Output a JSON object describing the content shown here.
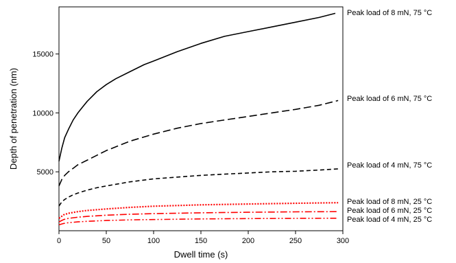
{
  "chart_data": {
    "type": "line",
    "title": "",
    "xlabel": "Dwell time (s)",
    "ylabel": "Depth of penetration (nm)",
    "xlim": [
      0,
      300
    ],
    "ylim": [
      0,
      19000
    ],
    "xticks": [
      0,
      50,
      100,
      150,
      200,
      250,
      300
    ],
    "yticks": [
      5000,
      10000,
      15000
    ],
    "xtick_labels": [
      "0",
      "50",
      "100",
      "150",
      "200",
      "250",
      "300"
    ],
    "ytick_labels": [
      "5000",
      "10000",
      "15000"
    ],
    "grid": false,
    "legend": "labels placed at right end of each curve",
    "series": [
      {
        "name": "Peak load of 8 mN, 75 °C",
        "color": "#000000",
        "dash": "solid",
        "x": [
          0,
          3,
          6,
          10,
          15,
          20,
          25,
          30,
          40,
          50,
          60,
          75,
          90,
          100,
          125,
          150,
          175,
          200,
          225,
          250,
          275,
          292
        ],
        "y": [
          5900,
          7000,
          7900,
          8600,
          9400,
          10000,
          10500,
          11000,
          11800,
          12400,
          12900,
          13500,
          14100,
          14400,
          15200,
          15900,
          16500,
          16900,
          17300,
          17700,
          18100,
          18450
        ]
      },
      {
        "name": "Peak load of 6 mN, 75 °C",
        "color": "#000000",
        "dash": "longdash",
        "x": [
          0,
          3,
          6,
          10,
          15,
          20,
          30,
          40,
          50,
          75,
          100,
          125,
          150,
          175,
          200,
          225,
          250,
          275,
          295
        ],
        "y": [
          3800,
          4350,
          4700,
          5000,
          5300,
          5600,
          6000,
          6400,
          6800,
          7600,
          8200,
          8700,
          9100,
          9400,
          9700,
          10000,
          10300,
          10650,
          11050
        ]
      },
      {
        "name": "Peak load of 4 mN, 75 °C",
        "color": "#000000",
        "dash": "shortdash",
        "x": [
          0,
          3,
          6,
          10,
          15,
          20,
          30,
          40,
          50,
          75,
          100,
          125,
          150,
          175,
          200,
          225,
          250,
          275,
          295
        ],
        "y": [
          2100,
          2450,
          2650,
          2850,
          3050,
          3200,
          3450,
          3650,
          3800,
          4150,
          4400,
          4550,
          4700,
          4800,
          4900,
          5000,
          5050,
          5150,
          5250
        ]
      },
      {
        "name": "Peak load of 8 mN, 25 °C",
        "color": "#ff0000",
        "dash": "dotted",
        "x": [
          0,
          5,
          10,
          20,
          30,
          50,
          75,
          100,
          150,
          200,
          250,
          295
        ],
        "y": [
          1050,
          1350,
          1480,
          1620,
          1720,
          1850,
          1980,
          2080,
          2200,
          2270,
          2330,
          2380
        ]
      },
      {
        "name": "Peak load of 6 mN, 25 °C",
        "color": "#ff0000",
        "dash": "dashdot",
        "x": [
          0,
          5,
          10,
          20,
          30,
          50,
          75,
          100,
          150,
          200,
          250,
          295
        ],
        "y": [
          750,
          950,
          1050,
          1150,
          1220,
          1320,
          1400,
          1450,
          1520,
          1570,
          1600,
          1620
        ]
      },
      {
        "name": "Peak load of 4 mN, 25 °C",
        "color": "#ff0000",
        "dash": "dashdotdot",
        "x": [
          0,
          5,
          10,
          20,
          30,
          50,
          75,
          100,
          150,
          200,
          250,
          295
        ],
        "y": [
          500,
          620,
          680,
          750,
          800,
          870,
          920,
          950,
          1000,
          1030,
          1050,
          1060
        ]
      }
    ]
  }
}
